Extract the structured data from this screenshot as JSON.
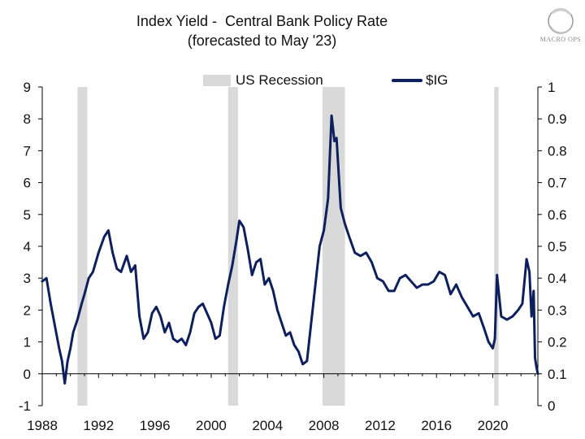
{
  "header": {
    "title_line1": "Index Yield -  Central Bank Policy Rate",
    "title_line2": "(forecasted to May '23)",
    "logo_text": "MACRO OPS"
  },
  "legend": {
    "recession_label": "US Recession",
    "series_label": "$IG"
  },
  "colors": {
    "series": "#0d1f5c",
    "recession": "#d9d9d9",
    "axis": "#000000"
  },
  "chart_data": {
    "type": "line",
    "title": "Index Yield -  Central Bank Policy Rate (forecasted to May '23)",
    "xlabel": "",
    "ylabel": "",
    "xlim": [
      1988,
      2023.2
    ],
    "ylim": [
      -1,
      9
    ],
    "y2lim": [
      0,
      1
    ],
    "x_ticks": [
      "1988",
      "1992",
      "1996",
      "2000",
      "2004",
      "2008",
      "2012",
      "2016",
      "2020"
    ],
    "y_ticks": [
      "-1",
      "0",
      "1",
      "2",
      "3",
      "4",
      "5",
      "6",
      "7",
      "8",
      "9"
    ],
    "y2_ticks": [
      "0",
      "0.1",
      "0.2",
      "0.3",
      "0.4",
      "0.5",
      "0.6",
      "0.7",
      "0.8",
      "0.9",
      "1"
    ],
    "recessions": [
      {
        "start": 1990.5,
        "end": 1991.2
      },
      {
        "start": 2001.2,
        "end": 2001.9
      },
      {
        "start": 2007.9,
        "end": 2009.5
      },
      {
        "start": 2020.1,
        "end": 2020.4
      }
    ],
    "series": [
      {
        "name": "$IG",
        "axis": "left",
        "x": [
          1988.0,
          1988.3,
          1988.6,
          1988.9,
          1989.2,
          1989.4,
          1989.6,
          1989.8,
          1990.0,
          1990.2,
          1990.5,
          1990.8,
          1991.0,
          1991.3,
          1991.6,
          1992.0,
          1992.4,
          1992.7,
          1993.0,
          1993.3,
          1993.6,
          1994.0,
          1994.3,
          1994.6,
          1994.9,
          1995.2,
          1995.5,
          1995.8,
          1996.1,
          1996.4,
          1996.7,
          1997.0,
          1997.3,
          1997.6,
          1997.9,
          1998.2,
          1998.5,
          1998.8,
          1999.1,
          1999.4,
          1999.7,
          2000.0,
          2000.3,
          2000.6,
          2000.9,
          2001.2,
          2001.5,
          2001.8,
          2002.0,
          2002.3,
          2002.6,
          2002.9,
          2003.2,
          2003.5,
          2003.8,
          2004.1,
          2004.4,
          2004.7,
          2005.0,
          2005.3,
          2005.6,
          2005.9,
          2006.2,
          2006.5,
          2006.8,
          2007.1,
          2007.4,
          2007.7,
          2008.0,
          2008.3,
          2008.55,
          2008.75,
          2008.9,
          2009.05,
          2009.2,
          2009.5,
          2009.8,
          2010.2,
          2010.6,
          2011.0,
          2011.4,
          2011.8,
          2012.2,
          2012.6,
          2013.0,
          2013.4,
          2013.8,
          2014.2,
          2014.6,
          2015.0,
          2015.4,
          2015.8,
          2016.2,
          2016.6,
          2017.0,
          2017.4,
          2017.8,
          2018.2,
          2018.6,
          2019.0,
          2019.4,
          2019.7,
          2020.0,
          2020.15,
          2020.3,
          2020.6,
          2021.0,
          2021.4,
          2021.8,
          2022.1,
          2022.4,
          2022.6,
          2022.75,
          2022.9,
          2023.0,
          2023.1,
          2023.2
        ],
        "values": [
          2.9,
          3.0,
          2.2,
          1.5,
          0.8,
          0.4,
          -0.3,
          0.4,
          0.8,
          1.3,
          1.7,
          2.2,
          2.5,
          3.0,
          3.2,
          3.8,
          4.3,
          4.5,
          3.8,
          3.3,
          3.2,
          3.7,
          3.2,
          3.4,
          1.8,
          1.1,
          1.3,
          1.9,
          2.1,
          1.8,
          1.3,
          1.6,
          1.1,
          1.0,
          1.1,
          0.9,
          1.3,
          1.9,
          2.1,
          2.2,
          1.9,
          1.6,
          1.1,
          1.2,
          2.1,
          2.8,
          3.4,
          4.2,
          4.8,
          4.6,
          3.9,
          3.1,
          3.5,
          3.6,
          2.8,
          3.0,
          2.6,
          2.0,
          1.6,
          1.2,
          1.3,
          0.9,
          0.7,
          0.3,
          0.4,
          1.6,
          2.8,
          4.0,
          4.5,
          5.5,
          8.1,
          7.3,
          7.4,
          6.3,
          5.2,
          4.7,
          4.3,
          3.8,
          3.7,
          3.8,
          3.5,
          3.0,
          2.9,
          2.6,
          2.6,
          3.0,
          3.1,
          2.9,
          2.7,
          2.8,
          2.8,
          2.9,
          3.2,
          3.1,
          2.5,
          2.8,
          2.4,
          2.1,
          1.8,
          1.9,
          1.4,
          1.0,
          0.8,
          1.1,
          3.1,
          1.8,
          1.7,
          1.8,
          2.0,
          2.2,
          3.6,
          3.2,
          1.8,
          2.6,
          0.5,
          0.2,
          0.0
        ]
      }
    ]
  }
}
